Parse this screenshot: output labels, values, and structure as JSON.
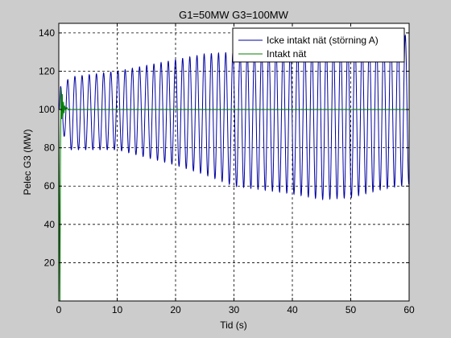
{
  "colors": {
    "figure_background": "#cccccc",
    "plot_background": "#ffffff",
    "series_1": "#0000a0",
    "series_2": "#008000",
    "grid": "#000000"
  },
  "chart_data": {
    "type": "line",
    "title": "G1=50MW G3=100MW",
    "xlabel": "Tid (s)",
    "ylabel": "Pelec G3 (MW)",
    "xlim": [
      0,
      60
    ],
    "ylim": [
      0,
      145
    ],
    "xticks": [
      "0",
      "10",
      "20",
      "30",
      "40",
      "50",
      "60"
    ],
    "yticks": [
      "20",
      "40",
      "60",
      "80",
      "100",
      "120",
      "140"
    ],
    "grid": true,
    "legend_position": "top-right",
    "series": [
      {
        "name": "Icke intakt nät (störning A)",
        "color": "#0000a0",
        "oscillation": {
          "period_s": 1.23,
          "start_s": 0.3,
          "upper_envelope": [
            [
              0.3,
              112
            ],
            [
              2,
              117
            ],
            [
              10,
              120
            ],
            [
              20,
              126
            ],
            [
              25,
              129
            ],
            [
              30,
              130
            ],
            [
              40,
              134
            ],
            [
              50,
              136
            ],
            [
              58,
              138
            ],
            [
              60,
              139
            ]
          ],
          "lower_envelope": [
            [
              0.3,
              90
            ],
            [
              2,
              79
            ],
            [
              10,
              79
            ],
            [
              20,
              71
            ],
            [
              25,
              66
            ],
            [
              30,
              60
            ],
            [
              40,
              56
            ],
            [
              45,
              53
            ],
            [
              50,
              54
            ],
            [
              55,
              58
            ],
            [
              60,
              61
            ]
          ]
        }
      },
      {
        "name": "Intakt nät",
        "color": "#008000",
        "transient": [
          [
            0,
            100
          ],
          [
            0.1,
            52
          ],
          [
            0.2,
            0
          ],
          [
            0.3,
            80
          ],
          [
            0.4,
            111
          ],
          [
            0.5,
            95
          ],
          [
            0.6,
            108
          ],
          [
            0.7,
            96
          ],
          [
            0.8,
            104
          ],
          [
            0.9,
            98
          ],
          [
            1.0,
            102
          ],
          [
            1.2,
            99.5
          ],
          [
            1.4,
            101
          ],
          [
            1.6,
            99.8
          ],
          [
            1.8,
            100.3
          ],
          [
            2.0,
            100
          ]
        ],
        "steady_value": 100
      }
    ]
  }
}
